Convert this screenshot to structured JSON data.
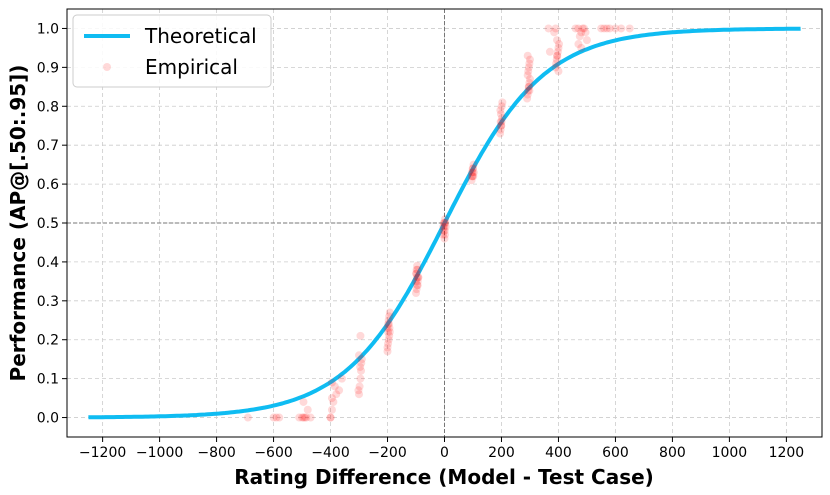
{
  "chart_data": {
    "type": "scatter",
    "title": "",
    "xlabel": "Rating Difference (Model - Test Case)",
    "ylabel": "Performance (AP@[.50:.95])",
    "xlim": [
      -1325,
      1325
    ],
    "ylim": [
      -0.05,
      1.05
    ],
    "xticks": [
      -1200,
      -1000,
      -800,
      -600,
      -400,
      -200,
      0,
      200,
      400,
      600,
      800,
      1000,
      1200
    ],
    "xtick_labels": [
      "−1200",
      "−1000",
      "−800",
      "−600",
      "−400",
      "−200",
      "0",
      "200",
      "400",
      "600",
      "800",
      "1000",
      "1200"
    ],
    "yticks": [
      0.0,
      0.1,
      0.2,
      0.3,
      0.4,
      0.5,
      0.6,
      0.7,
      0.8,
      0.9,
      1.0
    ],
    "ytick_labels": [
      "0.0",
      "0.1",
      "0.2",
      "0.3",
      "0.4",
      "0.5",
      "0.6",
      "0.7",
      "0.8",
      "0.9",
      "1.0"
    ],
    "grid": true,
    "reference_lines": {
      "x": 0,
      "y": 0.5
    },
    "legend": {
      "placement": "top-left",
      "entries": [
        "Theoretical",
        "Empirical"
      ]
    },
    "colors": {
      "theoretical": "#0fbcf2",
      "empirical": "#ff0000",
      "reference": "#777777",
      "grid": "#cccccc"
    },
    "series": [
      {
        "name": "Theoretical",
        "kind": "line",
        "function": "logistic",
        "scale_denominator": 400,
        "x_range": [
          -1250,
          1250
        ],
        "x": [
          -1250,
          -1000,
          -800,
          -600,
          -400,
          -200,
          0,
          200,
          400,
          600,
          800,
          1000,
          1250
        ],
        "values": [
          0.0008,
          0.0032,
          0.01,
          0.0307,
          0.0909,
          0.2403,
          0.5,
          0.7597,
          0.9091,
          0.9693,
          0.99,
          0.9968,
          0.9992
        ]
      },
      {
        "name": "Empirical",
        "kind": "scatter",
        "points": [
          [
            -690,
            0.0
          ],
          [
            -600,
            0.0
          ],
          [
            -590,
            0.0
          ],
          [
            -580,
            0.0
          ],
          [
            -510,
            0.0
          ],
          [
            -500,
            0.0
          ],
          [
            -495,
            0.0
          ],
          [
            -490,
            0.0
          ],
          [
            -485,
            0.0
          ],
          [
            -480,
            0.02
          ],
          [
            -495,
            0.04
          ],
          [
            -470,
            0.0
          ],
          [
            -400,
            0.0
          ],
          [
            -395,
            0.02
          ],
          [
            -390,
            0.04
          ],
          [
            -380,
            0.06
          ],
          [
            -385,
            0.08
          ],
          [
            -395,
            0.09
          ],
          [
            -370,
            0.07
          ],
          [
            -400,
            0.0
          ],
          [
            -360,
            0.1
          ],
          [
            -395,
            0.05
          ],
          [
            -300,
            0.06
          ],
          [
            -298,
            0.08
          ],
          [
            -295,
            0.1
          ],
          [
            -293,
            0.12
          ],
          [
            -292,
            0.14
          ],
          [
            -290,
            0.15
          ],
          [
            -300,
            0.16
          ],
          [
            -295,
            0.21
          ],
          [
            -302,
            0.07
          ],
          [
            -296,
            0.13
          ],
          [
            -200,
            0.17
          ],
          [
            -198,
            0.19
          ],
          [
            -196,
            0.2
          ],
          [
            -194,
            0.21
          ],
          [
            -192,
            0.22
          ],
          [
            -200,
            0.23
          ],
          [
            -198,
            0.24
          ],
          [
            -196,
            0.25
          ],
          [
            -194,
            0.26
          ],
          [
            -192,
            0.27
          ],
          [
            -200,
            0.18
          ],
          [
            -198,
            0.22
          ],
          [
            -195,
            0.24
          ],
          [
            -193,
            0.23
          ],
          [
            -100,
            0.32
          ],
          [
            -98,
            0.33
          ],
          [
            -96,
            0.34
          ],
          [
            -94,
            0.35
          ],
          [
            -92,
            0.36
          ],
          [
            -100,
            0.37
          ],
          [
            -98,
            0.38
          ],
          [
            -96,
            0.39
          ],
          [
            -94,
            0.34
          ],
          [
            -92,
            0.36
          ],
          [
            -100,
            0.35
          ],
          [
            -98,
            0.37
          ],
          [
            -95,
            0.38
          ],
          [
            -97,
            0.36
          ],
          [
            -5,
            0.47
          ],
          [
            -3,
            0.48
          ],
          [
            -1,
            0.49
          ],
          [
            0,
            0.5
          ],
          [
            2,
            0.51
          ],
          [
            4,
            0.49
          ],
          [
            -2,
            0.5
          ],
          [
            1,
            0.48
          ],
          [
            3,
            0.5
          ],
          [
            0,
            0.46
          ],
          [
            -4,
            0.49
          ],
          [
            2,
            0.47
          ],
          [
            95,
            0.61
          ],
          [
            97,
            0.62
          ],
          [
            99,
            0.63
          ],
          [
            100,
            0.64
          ],
          [
            102,
            0.65
          ],
          [
            98,
            0.62
          ],
          [
            96,
            0.63
          ],
          [
            101,
            0.62
          ],
          [
            103,
            0.63
          ],
          [
            99,
            0.64
          ],
          [
            195,
            0.73
          ],
          [
            197,
            0.74
          ],
          [
            199,
            0.75
          ],
          [
            200,
            0.76
          ],
          [
            202,
            0.77
          ],
          [
            198,
            0.78
          ],
          [
            196,
            0.79
          ],
          [
            201,
            0.8
          ],
          [
            203,
            0.81
          ],
          [
            199,
            0.75
          ],
          [
            197,
            0.76
          ],
          [
            290,
            0.82
          ],
          [
            292,
            0.83
          ],
          [
            294,
            0.84
          ],
          [
            296,
            0.85
          ],
          [
            298,
            0.86
          ],
          [
            300,
            0.87
          ],
          [
            292,
            0.88
          ],
          [
            294,
            0.89
          ],
          [
            296,
            0.9
          ],
          [
            298,
            0.91
          ],
          [
            300,
            0.92
          ],
          [
            292,
            0.93
          ],
          [
            296,
            0.85
          ],
          [
            298,
            0.84
          ],
          [
            365,
            1.0
          ],
          [
            370,
            0.94
          ],
          [
            385,
            0.99
          ],
          [
            390,
            0.9
          ],
          [
            392,
            0.91
          ],
          [
            394,
            0.92
          ],
          [
            396,
            0.93
          ],
          [
            398,
            0.94
          ],
          [
            400,
            0.95
          ],
          [
            402,
            0.96
          ],
          [
            395,
            0.97
          ],
          [
            390,
            1.0
          ],
          [
            400,
            0.89
          ],
          [
            395,
            0.93
          ],
          [
            460,
            1.0
          ],
          [
            470,
            0.96
          ],
          [
            475,
            0.98
          ],
          [
            480,
            0.99
          ],
          [
            485,
            1.0
          ],
          [
            490,
            1.0
          ],
          [
            495,
            0.99
          ],
          [
            480,
            0.95
          ],
          [
            500,
            0.97
          ],
          [
            470,
            1.0
          ],
          [
            550,
            1.0
          ],
          [
            560,
            1.0
          ],
          [
            570,
            1.0
          ],
          [
            580,
            1.0
          ],
          [
            600,
            1.0
          ],
          [
            620,
            1.0
          ],
          [
            650,
            1.0
          ]
        ]
      }
    ]
  }
}
